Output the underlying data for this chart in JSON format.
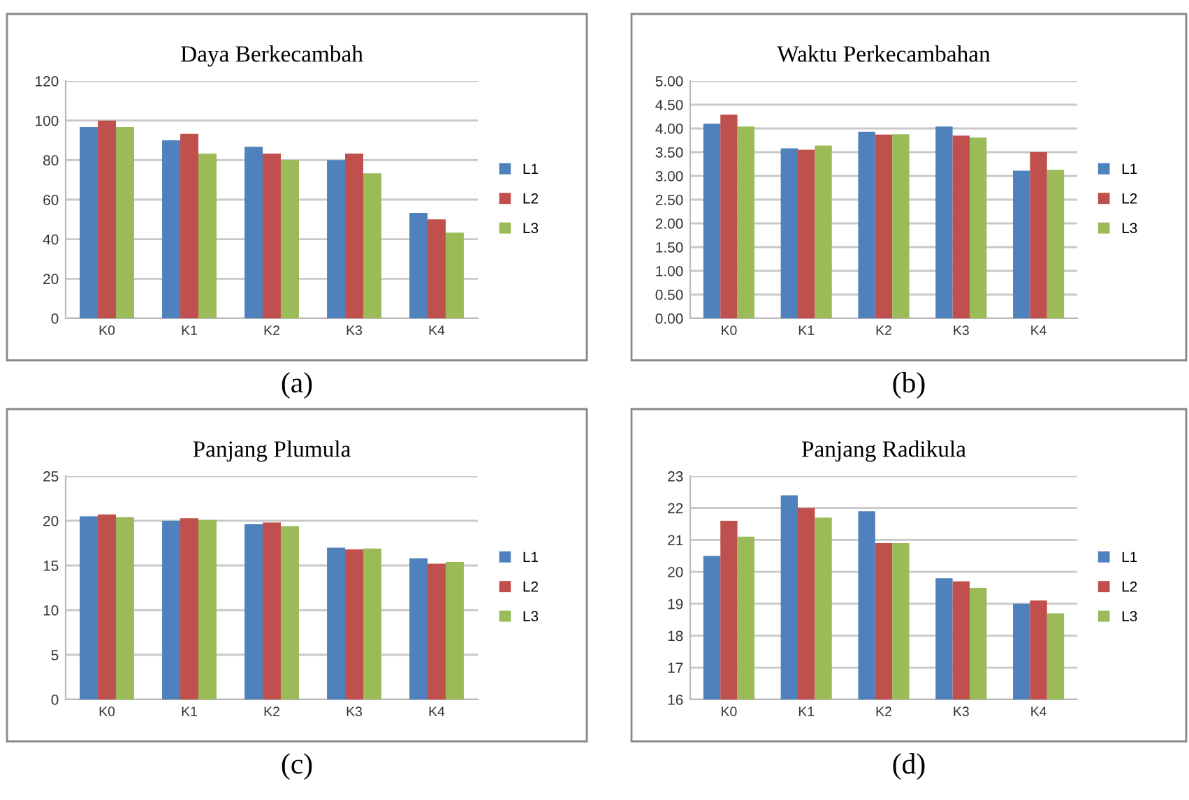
{
  "chart_data": [
    {
      "type": "bar",
      "title": "Daya Berkecambah",
      "categories": [
        "K0",
        "K1",
        "K2",
        "K3",
        "K4"
      ],
      "series": [
        {
          "name": "L1",
          "color": "#4f81bd",
          "values": [
            96.7,
            90,
            86.7,
            80,
            53.3
          ]
        },
        {
          "name": "L2",
          "color": "#c0504d",
          "values": [
            100,
            93.3,
            83.3,
            83.3,
            50
          ]
        },
        {
          "name": "L3",
          "color": "#9bbb59",
          "values": [
            96.7,
            83.3,
            80,
            73.3,
            43.3
          ]
        }
      ],
      "ylim": [
        0,
        120
      ],
      "yticks": [
        0,
        20,
        40,
        60,
        80,
        100,
        120
      ],
      "grid": "y",
      "legend": "right",
      "annotations": [
        "(a)"
      ]
    },
    {
      "type": "bar",
      "title": "Waktu Perkecambahan",
      "categories": [
        "K0",
        "K1",
        "K2",
        "K3",
        "K4"
      ],
      "series": [
        {
          "name": "L1",
          "color": "#4f81bd",
          "values": [
            4.1,
            3.58,
            3.93,
            4.04,
            3.11
          ]
        },
        {
          "name": "L2",
          "color": "#c0504d",
          "values": [
            4.29,
            3.55,
            3.87,
            3.85,
            3.5
          ]
        },
        {
          "name": "L3",
          "color": "#9bbb59",
          "values": [
            4.04,
            3.64,
            3.88,
            3.81,
            3.13
          ]
        }
      ],
      "ylim": [
        0,
        5
      ],
      "yticks": [
        {
          "value": 0,
          "label": "0.00"
        },
        {
          "value": 0.5,
          "label": "0.50"
        },
        {
          "value": 1,
          "label": "1.00"
        },
        {
          "value": 1.5,
          "label": "1.50"
        },
        {
          "value": 2,
          "label": "2.00"
        },
        {
          "value": 2.5,
          "label": "2.50"
        },
        {
          "value": 3,
          "label": "3.00"
        },
        {
          "value": 3.5,
          "label": "3.50"
        },
        {
          "value": 4,
          "label": "4.00"
        },
        {
          "value": 4.5,
          "label": "4.50"
        },
        {
          "value": 5,
          "label": "5.00"
        }
      ],
      "grid": "y",
      "legend": "right",
      "annotations": [
        "(b)"
      ]
    },
    {
      "type": "bar",
      "title": "Panjang Plumula",
      "categories": [
        "K0",
        "K1",
        "K2",
        "K3",
        "K4"
      ],
      "series": [
        {
          "name": "L1",
          "color": "#4f81bd",
          "values": [
            20.5,
            20.0,
            19.6,
            17.0,
            15.8
          ]
        },
        {
          "name": "L2",
          "color": "#c0504d",
          "values": [
            20.7,
            20.3,
            19.8,
            16.8,
            15.2
          ]
        },
        {
          "name": "L3",
          "color": "#9bbb59",
          "values": [
            20.4,
            20.1,
            19.4,
            16.9,
            15.4
          ]
        }
      ],
      "ylim": [
        0,
        25
      ],
      "yticks": [
        0,
        5,
        10,
        15,
        20,
        25
      ],
      "grid": "y",
      "legend": "right",
      "annotations": [
        "(c)"
      ]
    },
    {
      "type": "bar",
      "title": "Panjang Radikula",
      "categories": [
        "K0",
        "K1",
        "K2",
        "K3",
        "K4"
      ],
      "series": [
        {
          "name": "L1",
          "color": "#4f81bd",
          "values": [
            20.5,
            22.4,
            21.9,
            19.8,
            19.0
          ]
        },
        {
          "name": "L2",
          "color": "#c0504d",
          "values": [
            21.6,
            22.0,
            20.9,
            19.7,
            19.1
          ]
        },
        {
          "name": "L3",
          "color": "#9bbb59",
          "values": [
            21.1,
            21.7,
            20.9,
            19.5,
            18.7
          ]
        }
      ],
      "ylim": [
        16,
        23
      ],
      "yticks": [
        16,
        17,
        18,
        19,
        20,
        21,
        22,
        23
      ],
      "grid": "y",
      "legend": "right",
      "annotations": [
        "(d)"
      ]
    }
  ]
}
